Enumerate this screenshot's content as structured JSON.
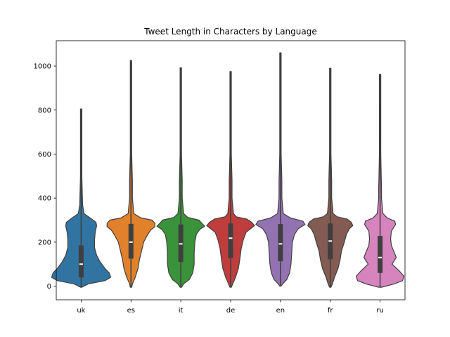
{
  "chart_data": {
    "type": "violin",
    "title": "Tweet Length in Characters by Language",
    "xlabel": "",
    "ylabel": "",
    "ylim": [
      -62,
      1115
    ],
    "yticks": [
      0,
      200,
      400,
      600,
      800,
      1000
    ],
    "ytick_labels": [
      "0",
      "200",
      "400",
      "600",
      "800",
      "1000"
    ],
    "categories": [
      "uk",
      "es",
      "it",
      "de",
      "en",
      "fr",
      "ru"
    ],
    "series": [
      {
        "name": "uk",
        "color": "#3274a1",
        "min": -5,
        "max": 805,
        "q1": 40,
        "median": 100,
        "q3": 185,
        "outline": [
          [
            -5,
            1
          ],
          [
            10,
            10
          ],
          [
            25,
            34
          ],
          [
            40,
            42
          ],
          [
            60,
            40
          ],
          [
            80,
            34
          ],
          [
            110,
            27
          ],
          [
            140,
            22
          ],
          [
            175,
            19
          ],
          [
            210,
            19
          ],
          [
            245,
            20
          ],
          [
            275,
            22
          ],
          [
            290,
            21
          ],
          [
            305,
            15
          ],
          [
            330,
            4
          ],
          [
            370,
            2
          ],
          [
            500,
            1
          ],
          [
            805,
            1
          ]
        ]
      },
      {
        "name": "es",
        "color": "#e1812c",
        "min": -5,
        "max": 1025,
        "q1": 125,
        "median": 200,
        "q3": 283,
        "outline": [
          [
            -5,
            1
          ],
          [
            10,
            2
          ],
          [
            40,
            6
          ],
          [
            80,
            10
          ],
          [
            120,
            12
          ],
          [
            160,
            15
          ],
          [
            200,
            18
          ],
          [
            230,
            23
          ],
          [
            255,
            28
          ],
          [
            270,
            34
          ],
          [
            285,
            34
          ],
          [
            300,
            30
          ],
          [
            310,
            14
          ],
          [
            330,
            4
          ],
          [
            400,
            2
          ],
          [
            480,
            2
          ],
          [
            600,
            1
          ],
          [
            1025,
            1
          ]
        ]
      },
      {
        "name": "it",
        "color": "#3a923a",
        "min": -5,
        "max": 992,
        "q1": 110,
        "median": 192,
        "q3": 280,
        "outline": [
          [
            -5,
            1
          ],
          [
            10,
            4
          ],
          [
            30,
            12
          ],
          [
            60,
            17
          ],
          [
            100,
            19
          ],
          [
            150,
            19
          ],
          [
            200,
            20
          ],
          [
            235,
            22
          ],
          [
            258,
            27
          ],
          [
            272,
            34
          ],
          [
            285,
            30
          ],
          [
            300,
            26
          ],
          [
            312,
            10
          ],
          [
            330,
            4
          ],
          [
            400,
            2
          ],
          [
            480,
            2
          ],
          [
            600,
            1
          ],
          [
            992,
            1
          ]
        ]
      },
      {
        "name": "de",
        "color": "#c03d3e",
        "min": -5,
        "max": 975,
        "q1": 128,
        "median": 218,
        "q3": 285,
        "outline": [
          [
            -5,
            1
          ],
          [
            10,
            3
          ],
          [
            40,
            7
          ],
          [
            80,
            11
          ],
          [
            120,
            13
          ],
          [
            170,
            15
          ],
          [
            210,
            18
          ],
          [
            245,
            22
          ],
          [
            265,
            30
          ],
          [
            275,
            34
          ],
          [
            290,
            30
          ],
          [
            305,
            23
          ],
          [
            315,
            8
          ],
          [
            330,
            4
          ],
          [
            400,
            2
          ],
          [
            480,
            2
          ],
          [
            600,
            1
          ],
          [
            975,
            1
          ]
        ]
      },
      {
        "name": "en",
        "color": "#9372b2",
        "min": 0,
        "max": 1060,
        "q1": 113,
        "median": 192,
        "q3": 282,
        "outline": [
          [
            0,
            1
          ],
          [
            10,
            3
          ],
          [
            30,
            9
          ],
          [
            60,
            13
          ],
          [
            100,
            15
          ],
          [
            150,
            16
          ],
          [
            200,
            17
          ],
          [
            235,
            20
          ],
          [
            260,
            25
          ],
          [
            280,
            35
          ],
          [
            295,
            32
          ],
          [
            310,
            14
          ],
          [
            330,
            4
          ],
          [
            400,
            2
          ],
          [
            480,
            2
          ],
          [
            600,
            1
          ],
          [
            1060,
            1
          ]
        ]
      },
      {
        "name": "fr",
        "color": "#845b53",
        "min": -5,
        "max": 990,
        "q1": 122,
        "median": 205,
        "q3": 285,
        "outline": [
          [
            -5,
            1
          ],
          [
            10,
            3
          ],
          [
            40,
            6
          ],
          [
            80,
            11
          ],
          [
            120,
            14
          ],
          [
            160,
            16
          ],
          [
            200,
            20
          ],
          [
            235,
            23
          ],
          [
            260,
            27
          ],
          [
            275,
            32
          ],
          [
            290,
            30
          ],
          [
            305,
            24
          ],
          [
            315,
            10
          ],
          [
            330,
            4
          ],
          [
            400,
            2
          ],
          [
            480,
            2
          ],
          [
            600,
            1
          ],
          [
            990,
            1
          ]
        ]
      },
      {
        "name": "ru",
        "color": "#d684bd",
        "min": -5,
        "max": 962,
        "q1": 60,
        "median": 130,
        "q3": 228,
        "outline": [
          [
            -5,
            2
          ],
          [
            10,
            20
          ],
          [
            25,
            32
          ],
          [
            45,
            34
          ],
          [
            70,
            27
          ],
          [
            100,
            17
          ],
          [
            130,
            23
          ],
          [
            155,
            20
          ],
          [
            185,
            16
          ],
          [
            215,
            15
          ],
          [
            250,
            16
          ],
          [
            280,
            22
          ],
          [
            295,
            21
          ],
          [
            310,
            10
          ],
          [
            330,
            4
          ],
          [
            400,
            2
          ],
          [
            440,
            2
          ],
          [
            600,
            1
          ],
          [
            962,
            1
          ]
        ]
      }
    ]
  }
}
